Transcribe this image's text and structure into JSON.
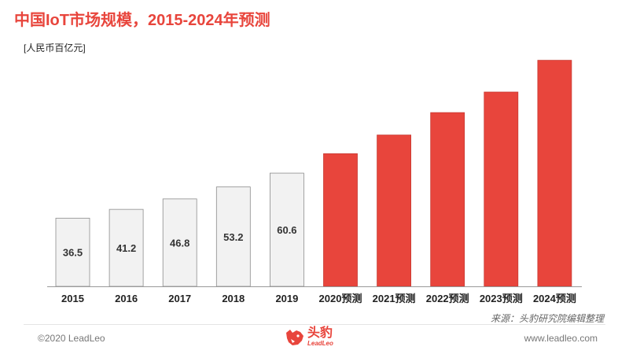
{
  "title": "中国IoT市场规模，2015-2024年预测",
  "unit": "[人民币百亿元]",
  "source": "来源：头豹研究院编辑整理",
  "footer": {
    "copyright": "©2020 LeadLeo",
    "website": "www.leadleo.com"
  },
  "logo": {
    "cn": "头豹",
    "en": "LeadLeo",
    "icon": "leopard-head-icon"
  },
  "colors": {
    "accent": "#e8453c",
    "historical_fill": "#f2f2f2",
    "historical_stroke": "#8c8c8c"
  },
  "chart_data": {
    "type": "bar",
    "title": "中国IoT市场规模，2015-2024年预测",
    "ylabel": "[人民币百亿元]",
    "categories": [
      "2015",
      "2016",
      "2017",
      "2018",
      "2019",
      "2020预测",
      "2021预测",
      "2022预测",
      "2023预测",
      "2024预测"
    ],
    "values": [
      36.5,
      41.2,
      46.8,
      53.2,
      60.6,
      71.0,
      81.0,
      93.0,
      104.0,
      121.0
    ],
    "data_labels": [
      "36.5",
      "41.2",
      "46.8",
      "53.2",
      "60.6",
      "",
      "",
      "",
      "",
      ""
    ],
    "forecast": [
      false,
      false,
      false,
      false,
      false,
      true,
      true,
      true,
      true,
      true
    ],
    "ylim": [
      0,
      128
    ],
    "grid": false,
    "legend": "none"
  }
}
